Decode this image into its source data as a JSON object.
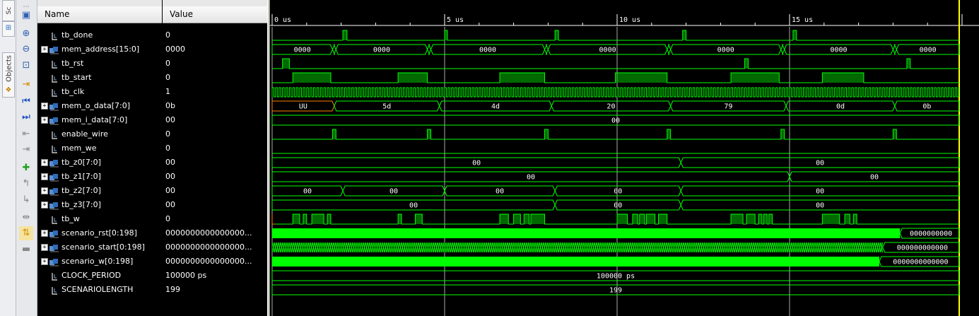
{
  "side_tabs": [
    {
      "label": "Sc",
      "icon": "scopes-icon"
    },
    {
      "label": "Objects",
      "icon": "objects-icon"
    }
  ],
  "toolbar_icons": [
    "save-icon",
    "zoom-in-icon",
    "zoom-out-icon",
    "zoom-fit-icon",
    "go-to-cursor-icon",
    "go-to-start-icon",
    "go-to-end-icon",
    "previous-transition-icon",
    "next-transition-icon",
    "add-marker-icon",
    "previous-marker-icon",
    "next-marker-icon",
    "swap-cursors-icon",
    "snap-to-transition-icon",
    "expand-icon"
  ],
  "columns": {
    "name": "Name",
    "value": "Value"
  },
  "signals": [
    {
      "name": "tb_done",
      "value": "0",
      "kind": "bit"
    },
    {
      "name": "mem_address[15:0]",
      "value": "0000",
      "kind": "bus"
    },
    {
      "name": "tb_rst",
      "value": "0",
      "kind": "bit"
    },
    {
      "name": "tb_start",
      "value": "0",
      "kind": "bit"
    },
    {
      "name": "tb_clk",
      "value": "1",
      "kind": "bit"
    },
    {
      "name": "mem_o_data[7:0]",
      "value": "0b",
      "kind": "bus"
    },
    {
      "name": "mem_i_data[7:0]",
      "value": "00",
      "kind": "bus"
    },
    {
      "name": "enable_wire",
      "value": "0",
      "kind": "bit"
    },
    {
      "name": "mem_we",
      "value": "0",
      "kind": "bit"
    },
    {
      "name": "tb_z0[7:0]",
      "value": "00",
      "kind": "bus"
    },
    {
      "name": "tb_z1[7:0]",
      "value": "00",
      "kind": "bus"
    },
    {
      "name": "tb_z2[7:0]",
      "value": "00",
      "kind": "bus"
    },
    {
      "name": "tb_z3[7:0]",
      "value": "00",
      "kind": "bus"
    },
    {
      "name": "tb_w",
      "value": "0",
      "kind": "bit"
    },
    {
      "name": "scenario_rst[0:198]",
      "value": "0000000000000000...",
      "kind": "bus"
    },
    {
      "name": "scenario_start[0:198]",
      "value": "0000000000000000...",
      "kind": "bus"
    },
    {
      "name": "scenario_w[0:198]",
      "value": "0000000000000000...",
      "kind": "bus"
    },
    {
      "name": "CLOCK_PERIOD",
      "value": "100000 ps",
      "kind": "param"
    },
    {
      "name": "SCENARIOLENGTH",
      "value": "199",
      "kind": "param"
    }
  ],
  "timeline": {
    "unit": "us",
    "range_us": [
      0,
      20.2
    ],
    "major_ticks": [
      {
        "t": 0,
        "label": "0 us"
      },
      {
        "t": 5,
        "label": "5 us"
      },
      {
        "t": 10,
        "label": "10 us"
      },
      {
        "t": 15,
        "label": "15 us"
      }
    ],
    "cursor_us": 20.2
  },
  "waves": {
    "tb_done": {
      "type": "bit",
      "init": 0,
      "edges": [
        2.05,
        2.17,
        5.0,
        5.08,
        8.2,
        8.3,
        11.9,
        12.0,
        15.1,
        15.2
      ]
    },
    "tb_rst": {
      "type": "bit",
      "init": 0,
      "edges": [
        0.3,
        0.5,
        13.7,
        13.8,
        18.4,
        18.5
      ]
    },
    "tb_start": {
      "type": "bit",
      "init": 0,
      "edges": [
        0.6,
        1.7,
        3.65,
        4.5,
        6.6,
        7.9,
        9.95,
        11.45,
        13.3,
        14.7,
        15.95,
        17.15
      ]
    },
    "tb_clk": {
      "type": "clock"
    },
    "enable_wire": {
      "type": "bit",
      "init": 0,
      "edges": [
        1.75,
        1.85,
        4.5,
        4.6,
        7.9,
        8.0,
        11.45,
        11.55,
        14.75,
        14.85,
        18.0,
        18.1
      ]
    },
    "mem_we": {
      "type": "bit",
      "init": 0,
      "edges": []
    },
    "tb_w": {
      "type": "bit",
      "init": 0,
      "edges": [
        0.6,
        0.8,
        0.9,
        1.0,
        1.15,
        1.5,
        1.6,
        1.7,
        3.65,
        3.75,
        4.15,
        4.35,
        6.6,
        6.85,
        7.0,
        7.2,
        7.3,
        7.45,
        7.5,
        7.9,
        10.0,
        10.3,
        10.45,
        10.6,
        10.65,
        10.8,
        10.85,
        11.1,
        11.2,
        11.45,
        13.3,
        13.65,
        13.75,
        14.0,
        14.1,
        14.2,
        14.25,
        14.35,
        14.4,
        14.5,
        15.95,
        16.45,
        16.6,
        16.75,
        16.85,
        16.95
      ],
      "undef_until": 0.08
    },
    "mem_address[15:0]": {
      "type": "bus",
      "segs": [
        {
          "t": 0,
          "v": "0000"
        },
        {
          "t": 1.75,
          "v": "0000"
        },
        {
          "t": 1.85,
          "v": "0000"
        },
        {
          "t": 4.5,
          "v": "0000"
        },
        {
          "t": 4.6,
          "v": "0000"
        },
        {
          "t": 7.9,
          "v": "0000"
        },
        {
          "t": 8.0,
          "v": "0000"
        },
        {
          "t": 11.45,
          "v": "0000"
        },
        {
          "t": 11.55,
          "v": "0000"
        },
        {
          "t": 14.75,
          "v": "0000"
        },
        {
          "t": 14.85,
          "v": "0000"
        },
        {
          "t": 18.0,
          "v": "0000"
        },
        {
          "t": 18.1,
          "v": "0000"
        }
      ],
      "show": [
        0,
        2,
        4,
        6,
        8,
        10,
        12
      ]
    },
    "mem_o_data[7:0]": {
      "type": "bus",
      "segs": [
        {
          "t": 0,
          "v": "UU"
        },
        {
          "t": 1.8,
          "v": "5d"
        },
        {
          "t": 4.85,
          "v": "4d"
        },
        {
          "t": 8.1,
          "v": "20"
        },
        {
          "t": 11.55,
          "v": "79"
        },
        {
          "t": 14.9,
          "v": "0d"
        },
        {
          "t": 18.05,
          "v": "0b"
        }
      ],
      "undef_first": true
    },
    "mem_i_data[7:0]": {
      "type": "bus",
      "segs": [
        {
          "t": 0,
          "v": "00"
        }
      ]
    },
    "tb_z0[7:0]": {
      "type": "bus",
      "segs": [
        {
          "t": 0,
          "v": "00"
        },
        {
          "t": 11.85,
          "v": "00"
        }
      ]
    },
    "tb_z1[7:0]": {
      "type": "bus",
      "segs": [
        {
          "t": 0,
          "v": "00"
        },
        {
          "t": 15.0,
          "v": "00"
        }
      ]
    },
    "tb_z2[7:0]": {
      "type": "bus",
      "segs": [
        {
          "t": 0,
          "v": "00"
        },
        {
          "t": 2.05,
          "v": "00"
        },
        {
          "t": 5.0,
          "v": "00"
        },
        {
          "t": 8.2,
          "v": "00"
        },
        {
          "t": 11.85,
          "v": "00"
        }
      ]
    },
    "tb_z3[7:0]": {
      "type": "bus",
      "segs": [
        {
          "t": 0,
          "v": "00"
        },
        {
          "t": 8.2,
          "v": "00"
        },
        {
          "t": 11.85,
          "v": "00"
        }
      ]
    },
    "scenario_rst[0:198]": {
      "type": "dense",
      "style": "solid",
      "end_t": 18.2,
      "tail": "0000000000"
    },
    "scenario_start[0:198]": {
      "type": "dense",
      "style": "hatch",
      "end_t": 17.7,
      "tail": "000000000000"
    },
    "scenario_w[0:198]": {
      "type": "dense",
      "style": "solid",
      "end_t": 17.6,
      "tail": "0000000000000"
    },
    "CLOCK_PERIOD": {
      "type": "bus",
      "segs": [
        {
          "t": 0,
          "v": "100000 ps"
        }
      ]
    },
    "SCENARIOLENGTH": {
      "type": "bus",
      "segs": [
        {
          "t": 0,
          "v": "199"
        }
      ]
    }
  },
  "colors": {
    "wave": "#00ff00",
    "wave_dim": "#00c000",
    "grid": "#c8c8c8",
    "undef": "#ff8000",
    "cursor": "#ffff00"
  }
}
